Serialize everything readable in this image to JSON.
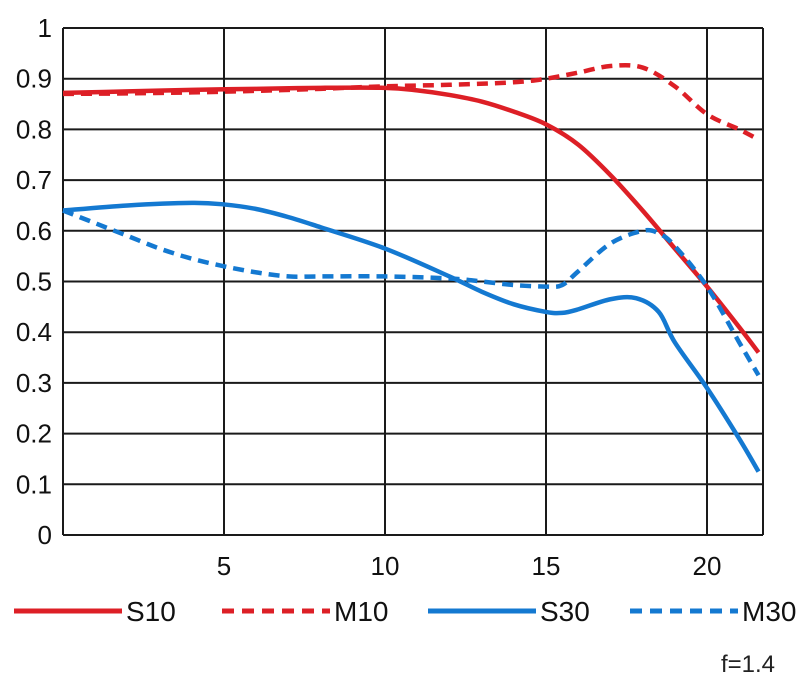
{
  "chart_data": {
    "type": "line",
    "title": "",
    "xlabel": "",
    "ylabel": "",
    "xlim": [
      0,
      21.6
    ],
    "ylim": [
      0,
      1
    ],
    "x_ticks": [
      5,
      10,
      15,
      20
    ],
    "y_ticks": [
      0,
      0.1,
      0.2,
      0.3,
      0.4,
      0.5,
      0.6,
      0.7,
      0.8,
      0.9,
      1
    ],
    "y_tick_labels": [
      "0",
      "0.1",
      "0.2",
      "0.3",
      "0.4",
      "0.5",
      "0.6",
      "0.7",
      "0.8",
      "0.9",
      "1"
    ],
    "x_tick_labels": [
      "5",
      "10",
      "15",
      "20"
    ],
    "grid": true,
    "legend_position": "bottom",
    "note": "f=1.4",
    "series": [
      {
        "name": "S10",
        "color": "#dd1f26",
        "dash": "solid",
        "x": [
          0,
          2,
          4,
          6,
          8,
          10,
          11,
          12,
          13,
          14,
          15,
          16,
          17,
          18,
          19,
          20,
          21,
          21.6
        ],
        "y": [
          0.872,
          0.875,
          0.878,
          0.88,
          0.882,
          0.882,
          0.877,
          0.868,
          0.855,
          0.835,
          0.81,
          0.77,
          0.71,
          0.64,
          0.565,
          0.49,
          0.41,
          0.36
        ]
      },
      {
        "name": "M10",
        "color": "#dd1f26",
        "dash": "dashed",
        "x": [
          0,
          2,
          4,
          6,
          8,
          10,
          12,
          14,
          15,
          16,
          17,
          18,
          19,
          20,
          21,
          21.6
        ],
        "y": [
          0.87,
          0.871,
          0.873,
          0.876,
          0.88,
          0.885,
          0.888,
          0.893,
          0.9,
          0.912,
          0.925,
          0.922,
          0.885,
          0.83,
          0.8,
          0.78
        ]
      },
      {
        "name": "S30",
        "color": "#1479d1",
        "dash": "solid",
        "x": [
          0,
          2,
          4,
          5,
          6,
          7,
          8,
          10,
          12,
          13,
          14,
          15,
          15.5,
          16,
          17,
          17.8,
          18.5,
          19,
          20,
          21,
          21.6
        ],
        "y": [
          0.64,
          0.65,
          0.655,
          0.652,
          0.643,
          0.627,
          0.607,
          0.565,
          0.51,
          0.48,
          0.455,
          0.44,
          0.438,
          0.445,
          0.465,
          0.467,
          0.44,
          0.38,
          0.29,
          0.19,
          0.125
        ]
      },
      {
        "name": "M30",
        "color": "#1479d1",
        "dash": "dashed",
        "x": [
          0,
          1,
          2,
          3,
          4,
          5,
          6,
          7,
          8,
          10,
          12,
          13,
          14,
          15,
          15.5,
          16,
          17,
          18,
          18.5,
          19,
          20,
          21,
          21.6
        ],
        "y": [
          0.64,
          0.615,
          0.59,
          0.565,
          0.545,
          0.53,
          0.518,
          0.51,
          0.51,
          0.51,
          0.506,
          0.5,
          0.493,
          0.49,
          0.493,
          0.52,
          0.575,
          0.6,
          0.595,
          0.57,
          0.49,
          0.38,
          0.315
        ]
      }
    ]
  }
}
